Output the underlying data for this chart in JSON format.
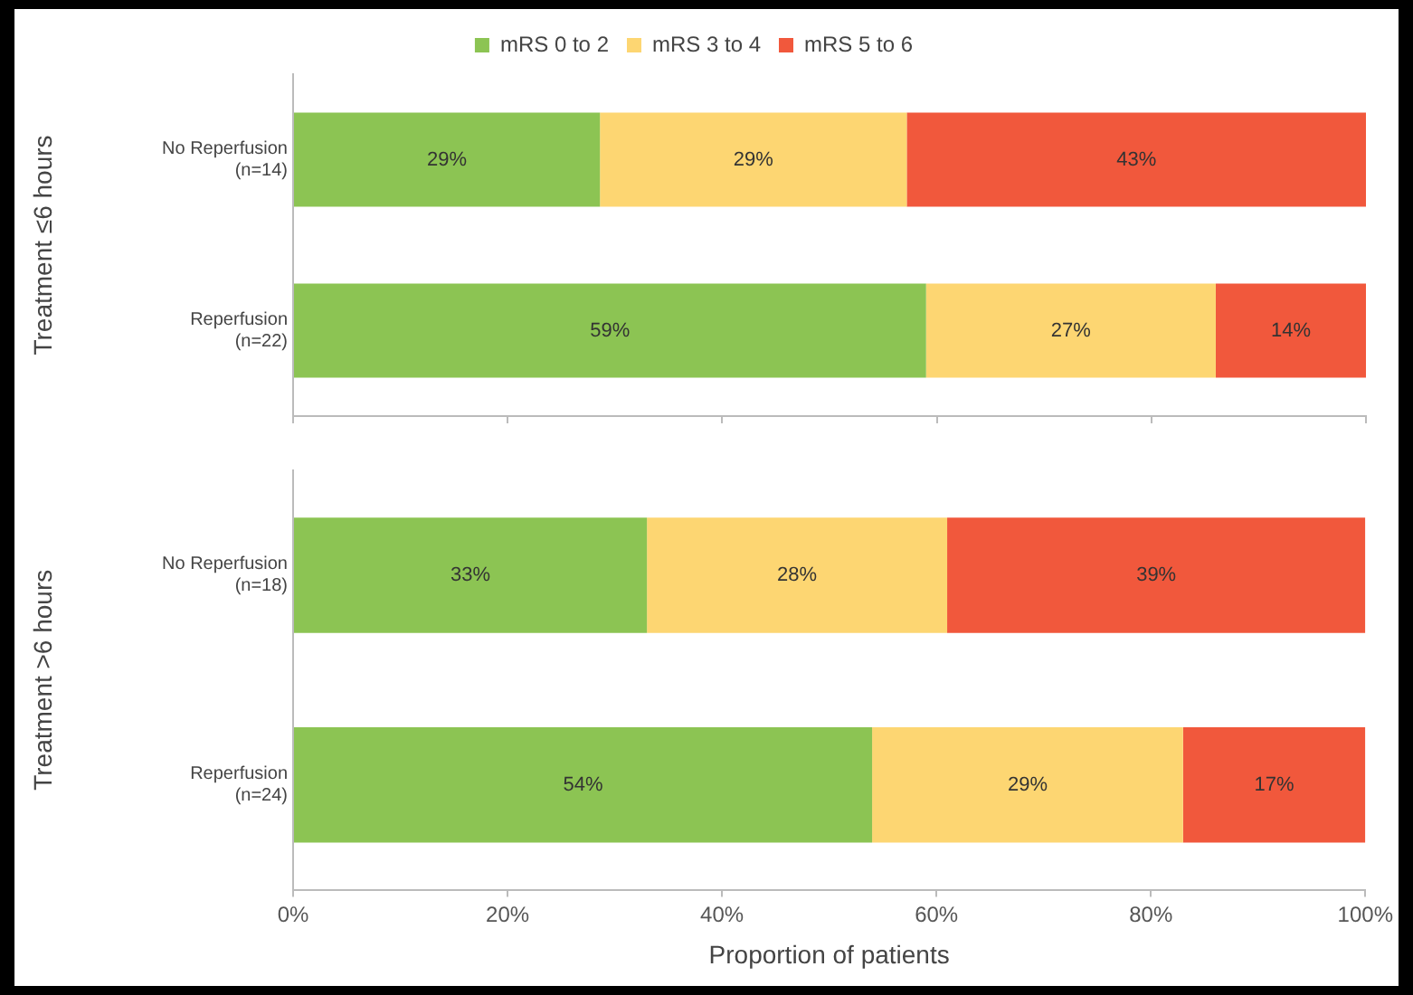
{
  "chart_data": [
    {
      "type": "bar",
      "orientation": "horizontal",
      "stacked": true,
      "ylabel": "Treatment ≤6 hours",
      "categories": [
        "No Reperfusion\n(n=14)",
        "Reperfusion\n(n=22)"
      ],
      "series": [
        {
          "name": "mRS 0 to 2",
          "color": "#8cc453",
          "values": [
            28.6,
            59
          ],
          "value_labels": [
            "29%",
            "59%"
          ]
        },
        {
          "name": "mRS 3 to 4",
          "color": "#fdd672",
          "values": [
            28.6,
            27
          ],
          "value_labels": [
            "29%",
            "27%"
          ]
        },
        {
          "name": "mRS 5 to 6",
          "color": "#f1583c",
          "values": [
            42.8,
            14
          ],
          "value_labels": [
            "43%",
            "14%"
          ]
        }
      ],
      "xlim": [
        0,
        100
      ],
      "xticks": [
        {
          "value": 0,
          "label": null
        },
        {
          "value": 20,
          "label": null
        },
        {
          "value": 40,
          "label": null
        },
        {
          "value": 60,
          "label": null
        },
        {
          "value": 80,
          "label": null
        },
        {
          "value": 100,
          "label": null
        }
      ],
      "tick_labels": "y",
      "grid": false,
      "legend": "top"
    },
    {
      "type": "bar",
      "orientation": "horizontal",
      "stacked": true,
      "ylabel": "Treatment >6 hours",
      "xlabel": "Proportion of patients",
      "categories": [
        "No Reperfusion\n(n=18)",
        "Reperfusion\n(n=24)"
      ],
      "series": [
        {
          "color": "#8cc453",
          "values": [
            33,
            54
          ],
          "value_labels": [
            "33%",
            "54%"
          ]
        },
        {
          "color": "#fdd672",
          "values": [
            28,
            29
          ],
          "value_labels": [
            "28%",
            "29%"
          ]
        },
        {
          "color": "#f1583c",
          "values": [
            39,
            17
          ],
          "value_labels": [
            "39%",
            "17%"
          ]
        }
      ],
      "xlim": [
        0,
        100
      ],
      "xticks": [
        {
          "value": 0,
          "label": "0%"
        },
        {
          "value": 20,
          "label": "20%"
        },
        {
          "value": 40,
          "label": "40%"
        },
        {
          "value": 60,
          "label": "60%"
        },
        {
          "value": 80,
          "label": "80%"
        },
        {
          "value": 100,
          "label": "100%"
        }
      ],
      "grid": false,
      "legend": false
    }
  ]
}
